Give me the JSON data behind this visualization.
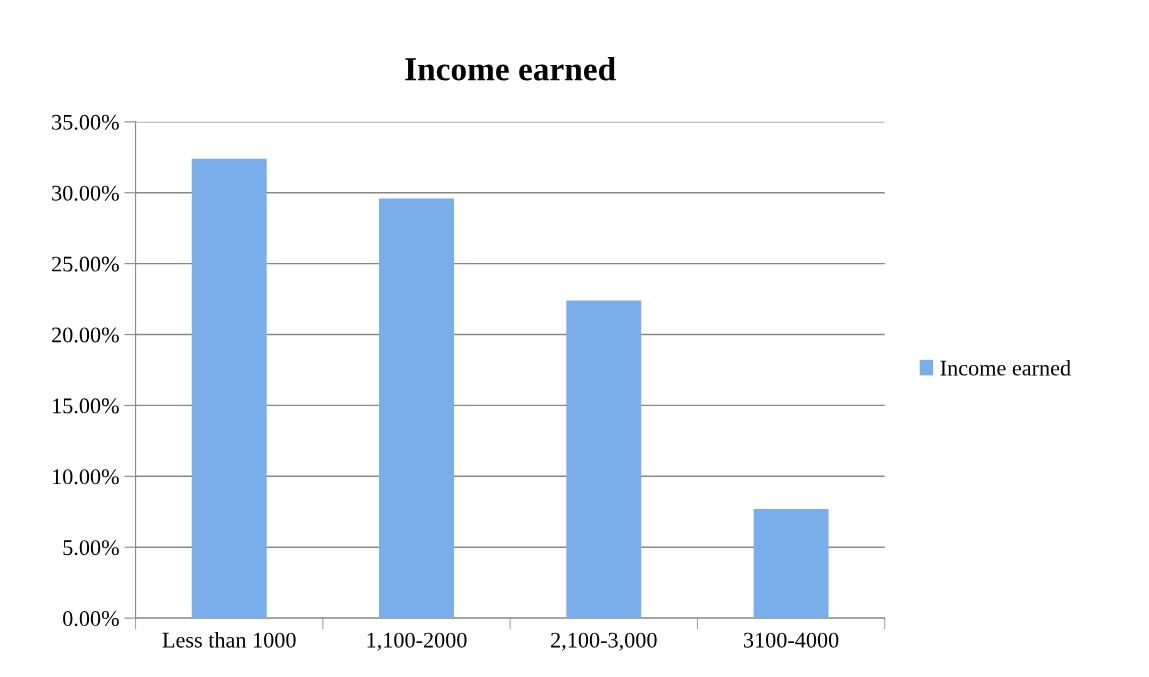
{
  "chart_data": {
    "type": "bar",
    "title": "Income earned",
    "categories": [
      "Less than 1000",
      "1,100-2000",
      "2,100-3,000",
      "3100-4000"
    ],
    "series": [
      {
        "name": "Income earned",
        "color": "#79aeea",
        "values": [
          32.4,
          29.6,
          22.4,
          7.7
        ]
      }
    ],
    "ylim": [
      0,
      35
    ],
    "yticks": [
      {
        "value": 0,
        "label": "0.00%"
      },
      {
        "value": 5,
        "label": "5.00%"
      },
      {
        "value": 10,
        "label": "10.00%"
      },
      {
        "value": 15,
        "label": "15.00%"
      },
      {
        "value": 20,
        "label": "20.00%"
      },
      {
        "value": 25,
        "label": "25.00%"
      },
      {
        "value": 30,
        "label": "30.00%"
      },
      {
        "value": 35,
        "label": "35.00%"
      }
    ],
    "grid": "y",
    "legend": "right"
  }
}
